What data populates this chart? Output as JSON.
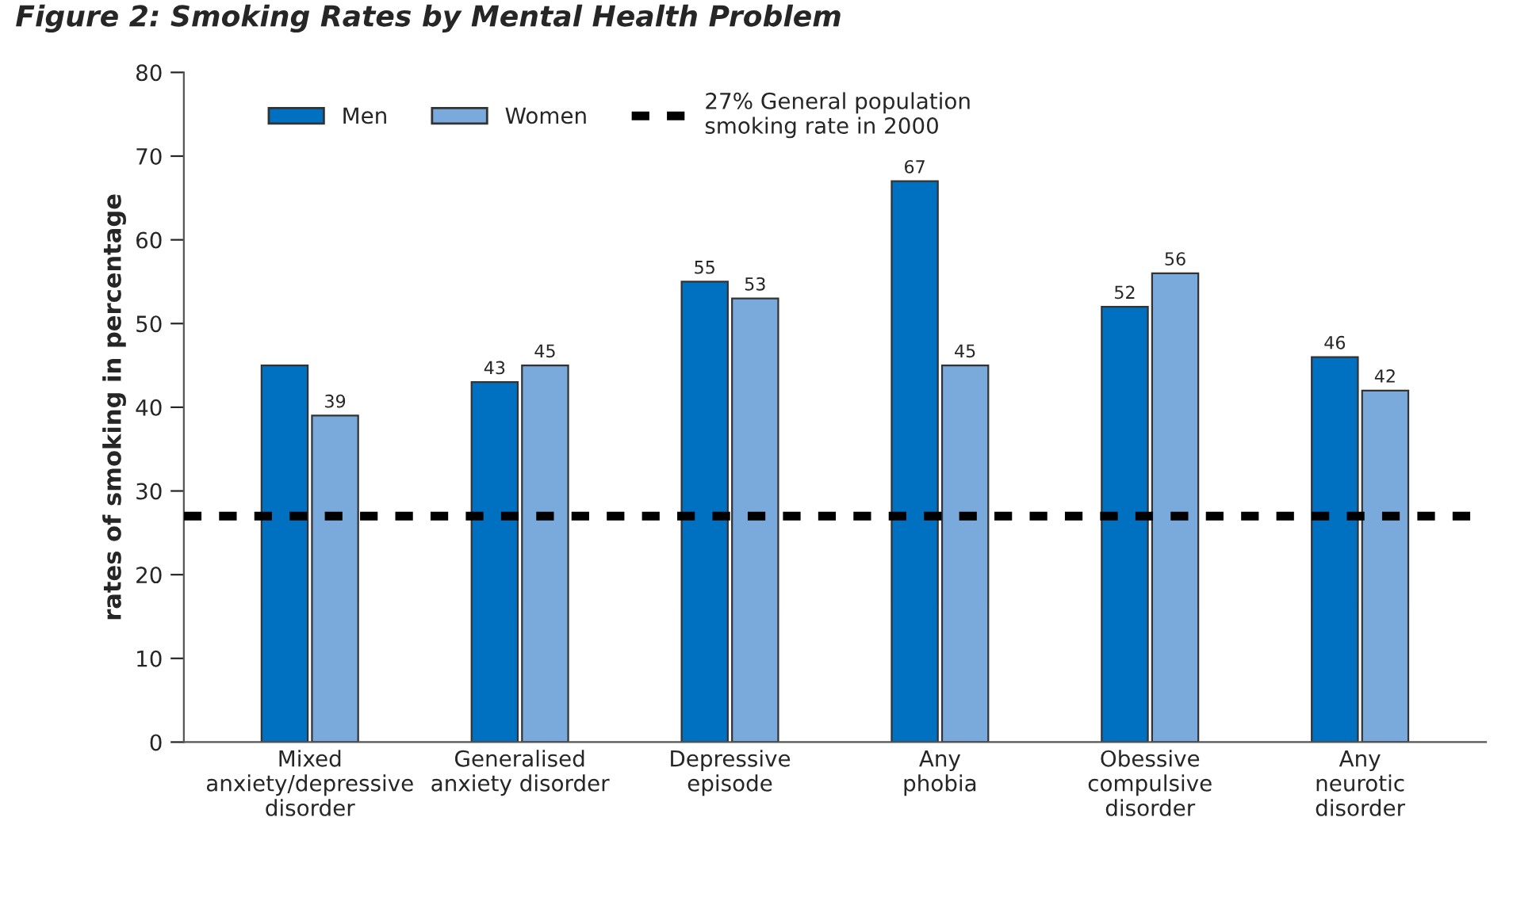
{
  "chart_data": {
    "type": "bar",
    "title": "Figure 2: Smoking Rates by Mental Health Problem",
    "ylabel": "rates of smoking in percentage",
    "categories": [
      "Mixed\nanxiety/depressive\ndisorder",
      "Generalised\nanxiety disorder",
      "Depressive\nepisode",
      "Any\nphobia",
      "Obessive\ncompulsive\ndisorder",
      "Any\nneurotic\ndisorder"
    ],
    "series": [
      {
        "name": "Men",
        "color": "#0070c0",
        "values": [
          45,
          43,
          55,
          67,
          52,
          46
        ],
        "value_labels": [
          null,
          "43",
          "55",
          "67",
          "52",
          "46"
        ]
      },
      {
        "name": "Women",
        "color": "#7aa9dc",
        "values": [
          39,
          45,
          53,
          45,
          56,
          42
        ],
        "value_labels": [
          "39",
          "45",
          "53",
          "45",
          "56",
          "42"
        ]
      }
    ],
    "ylim": [
      0,
      80
    ],
    "yticks": [
      0,
      10,
      20,
      30,
      40,
      50,
      60,
      70,
      80
    ],
    "grid": false,
    "legend": "top left",
    "ref_lines": [
      {
        "axis": "y",
        "value": 27,
        "label": "27% General population\nsmoking rate in 2000",
        "color": "#000000",
        "line_style": "dashed"
      }
    ]
  }
}
